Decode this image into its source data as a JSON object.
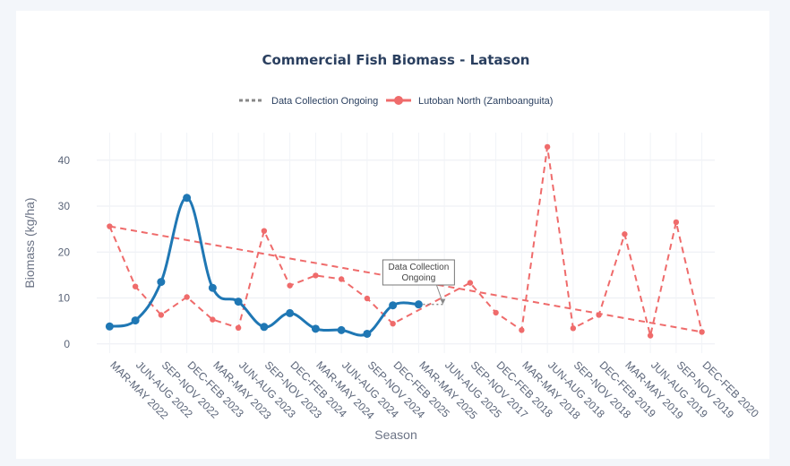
{
  "chart_data": {
    "type": "line",
    "title": "Commercial Fish Biomass - Latason",
    "xlabel": "Season",
    "ylabel": "Biomass (kg/ha)",
    "ylim": [
      -2,
      46
    ],
    "yticks": [
      0,
      10,
      20,
      30,
      40
    ],
    "categories": [
      "MAR-MAY 2022",
      "JUN-AUG 2022",
      "SEP-NOV 2022",
      "DEC-FEB 2023",
      "MAR-MAY 2023",
      "JUN-AUG 2023",
      "SEP-NOV 2023",
      "DEC-FEB 2024",
      "MAR-MAY 2024",
      "JUN-AUG 2024",
      "SEP-NOV 2024",
      "DEC-FEB 2025",
      "MAR-MAY 2025",
      "JUN-AUG 2025",
      "SEP-NOV 2017",
      "DEC-FEB 2018",
      "MAR-MAY 2018",
      "JUN-AUG 2018",
      "SEP-NOV 2018",
      "DEC-FEB 2019",
      "MAR-MAY 2019",
      "JUN-AUG 2019",
      "SEP-NOV 2019",
      "DEC-FEB 2020"
    ],
    "legend": [
      "Data Collection Ongoing",
      "Lutoban North (Zamboanguita)"
    ],
    "legend_placement": "top-center",
    "grid": true,
    "series": [
      {
        "name": "",
        "color": "#1f77b4",
        "style": "solid-spline",
        "values": [
          3.8,
          5.1,
          13.5,
          31.8,
          12.2,
          9.2,
          3.7,
          6.7,
          3.3,
          3.0,
          2.2,
          8.4,
          8.6,
          null,
          null,
          null,
          null,
          null,
          null,
          null,
          null,
          null,
          null,
          null
        ]
      },
      {
        "name": "Data Collection Ongoing",
        "color": "#888888",
        "style": "dotted",
        "points": [
          [
            "MAR-MAY 2025",
            8.6
          ],
          [
            "JUN-AUG 2025",
            8.6
          ]
        ]
      },
      {
        "name": "Lutoban North (Zamboanguita)",
        "color": "#ef6b6b",
        "style": "dashed",
        "values": [
          25.6,
          12.5,
          6.3,
          10.2,
          5.3,
          3.5,
          24.6,
          12.7,
          14.9,
          14.1,
          9.9,
          4.4,
          null,
          null,
          13.3,
          6.8,
          3.0,
          42.9,
          3.4,
          6.3,
          23.9,
          1.8,
          26.5,
          2.6
        ]
      },
      {
        "name": "",
        "color": "#ef6b6b",
        "style": "dashed",
        "points": [
          [
            "MAR-MAY 2022",
            25.6
          ],
          [
            "DEC-FEB 2020",
            2.6
          ]
        ]
      }
    ],
    "annotations": [
      {
        "text_lines": [
          "Data Collection",
          "Ongoing"
        ],
        "x": "MAR-MAY 2025",
        "y": 8.6
      }
    ]
  }
}
